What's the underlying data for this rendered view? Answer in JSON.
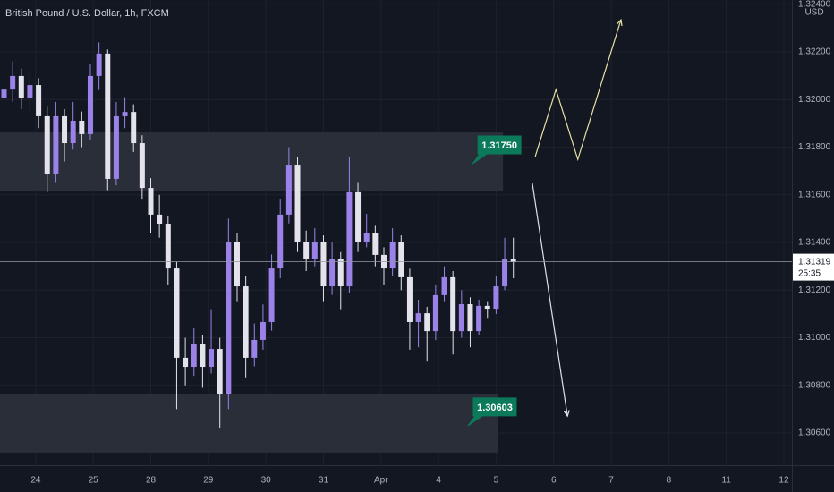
{
  "chart_data": {
    "type": "candlestick",
    "title": "British Pound / U.S. Dollar, 1h, FXCM",
    "currency": "USD",
    "up_color": "#9a82e8",
    "down_color": "#e4e3ec",
    "grid": true,
    "xlim": [
      -0.62,
      13.14
    ],
    "xticks": [
      {
        "value": 0,
        "label": "24"
      },
      {
        "value": 1,
        "label": "25"
      },
      {
        "value": 2,
        "label": "28"
      },
      {
        "value": 3,
        "label": "29"
      },
      {
        "value": 4,
        "label": "30"
      },
      {
        "value": 5,
        "label": "31"
      },
      {
        "value": 6,
        "label": "Apr"
      },
      {
        "value": 7,
        "label": "4"
      },
      {
        "value": 8,
        "label": "5"
      },
      {
        "value": 9,
        "label": "6"
      },
      {
        "value": 10,
        "label": "7"
      },
      {
        "value": 11,
        "label": "8"
      },
      {
        "value": 12,
        "label": "11"
      },
      {
        "value": 13,
        "label": "12"
      }
    ],
    "ylim": [
      1.30465,
      1.32418
    ],
    "yticks": [
      {
        "value": 1.306,
        "label": "1.30600"
      },
      {
        "value": 1.308,
        "label": "1.30800"
      },
      {
        "value": 1.31,
        "label": "1.31000"
      },
      {
        "value": 1.312,
        "label": "1.31200"
      },
      {
        "value": 1.314,
        "label": "1.31400"
      },
      {
        "value": 1.316,
        "label": "1.31600"
      },
      {
        "value": 1.318,
        "label": "1.31800"
      },
      {
        "value": 1.32,
        "label": "1.32000"
      },
      {
        "value": 1.322,
        "label": "1.32200"
      },
      {
        "value": 1.324,
        "label": "1.32400"
      }
    ],
    "x": [
      -0.55,
      -0.4,
      -0.25,
      -0.1,
      0.05,
      0.2,
      0.35,
      0.5,
      0.65,
      0.8,
      0.95,
      1.1,
      1.25,
      1.4,
      1.55,
      1.7,
      1.85,
      2,
      2.15,
      2.3,
      2.45,
      2.6,
      2.75,
      2.9,
      3.05,
      3.2,
      3.35,
      3.5,
      3.65,
      3.8,
      3.95,
      4.1,
      4.25,
      4.4,
      4.55,
      4.7,
      4.85,
      5,
      5.15,
      5.3,
      5.45,
      5.6,
      5.75,
      5.9,
      6.05,
      6.2,
      6.35,
      6.5,
      6.65,
      6.8,
      6.95,
      7.1,
      7.25,
      7.4,
      7.55,
      7.7,
      7.85,
      8,
      8.15,
      8.3
    ],
    "open": [
      1.32005,
      1.32042,
      1.32099,
      1.32005,
      1.32061,
      1.3193,
      1.31686,
      1.3193,
      1.31817,
      1.31911,
      1.31855,
      1.32099,
      1.32193,
      1.31667,
      1.3193,
      1.31948,
      1.31817,
      1.31629,
      1.31517,
      1.31479,
      1.31291,
      1.30916,
      1.30878,
      1.30972,
      1.30878,
      1.30953,
      1.30765,
      1.31404,
      1.31216,
      1.30916,
      1.30991,
      1.31066,
      1.31291,
      1.31517,
      1.31723,
      1.31404,
      1.31329,
      1.31404,
      1.31216,
      1.31329,
      1.31216,
      1.31611,
      1.31404,
      1.31441,
      1.31348,
      1.31291,
      1.31404,
      1.31254,
      1.31066,
      1.31103,
      1.31028,
      1.31179,
      1.31254,
      1.31028,
      1.31141,
      1.31028,
      1.31134,
      1.31122,
      1.31216,
      1.31329
    ],
    "high": [
      1.3214,
      1.3216,
      1.3213,
      1.3211,
      1.3209,
      1.3197,
      1.3199,
      1.3196,
      1.3199,
      1.3195,
      1.3215,
      1.3224,
      1.3221,
      1.3199,
      1.3201,
      1.3198,
      1.3185,
      1.3167,
      1.316,
      1.3151,
      1.3132,
      1.31,
      1.3104,
      1.3101,
      1.3112,
      1.31,
      1.315,
      1.3144,
      1.3126,
      1.3106,
      1.3114,
      1.3135,
      1.3158,
      1.318,
      1.3176,
      1.3145,
      1.3146,
      1.3143,
      1.314,
      1.3136,
      1.3176,
      1.3165,
      1.3152,
      1.3147,
      1.3138,
      1.3146,
      1.3143,
      1.3129,
      1.3116,
      1.3113,
      1.3122,
      1.313,
      1.3128,
      1.312,
      1.3117,
      1.3116,
      1.3115,
      1.3126,
      1.3142,
      1.3142
    ],
    "low": [
      1.3195,
      1.3199,
      1.3196,
      1.3194,
      1.3188,
      1.3161,
      1.3165,
      1.3174,
      1.3179,
      1.318,
      1.3183,
      1.3204,
      1.3162,
      1.3164,
      1.3188,
      1.3178,
      1.3158,
      1.3144,
      1.3142,
      1.3122,
      1.307,
      1.308,
      1.3084,
      1.3079,
      1.3085,
      1.3062,
      1.307,
      1.3115,
      1.3083,
      1.3088,
      1.3095,
      1.3103,
      1.3125,
      1.3148,
      1.3136,
      1.3128,
      1.313,
      1.3115,
      1.3118,
      1.3112,
      1.3119,
      1.3136,
      1.3138,
      1.313,
      1.3122,
      1.3126,
      1.312,
      1.3095,
      1.3096,
      1.309,
      1.3099,
      1.3115,
      1.3093,
      1.31,
      1.3096,
      1.3101,
      1.3108,
      1.311,
      1.312,
      1.3125
    ],
    "close": [
      1.32042,
      1.32099,
      1.32005,
      1.32061,
      1.3193,
      1.31686,
      1.3193,
      1.31817,
      1.31911,
      1.31855,
      1.32099,
      1.32193,
      1.31667,
      1.3193,
      1.31948,
      1.31817,
      1.31629,
      1.31517,
      1.31479,
      1.31291,
      1.30916,
      1.30878,
      1.30972,
      1.30878,
      1.30953,
      1.30765,
      1.31404,
      1.31216,
      1.30916,
      1.30991,
      1.31066,
      1.31291,
      1.31517,
      1.31723,
      1.31404,
      1.31329,
      1.31404,
      1.31216,
      1.31329,
      1.31216,
      1.31611,
      1.31404,
      1.31441,
      1.31348,
      1.31291,
      1.31404,
      1.31254,
      1.31066,
      1.31103,
      1.31028,
      1.31179,
      1.31254,
      1.31028,
      1.31141,
      1.31028,
      1.31134,
      1.31122,
      1.31216,
      1.31329,
      1.31319
    ],
    "last_price": {
      "value": 1.31319,
      "label": "1.31319",
      "countdown": "25:35"
    },
    "zones": [
      {
        "label": "1.31750",
        "xlim": [
          -0.62,
          8.12
        ],
        "ylim": [
          1.31618,
          1.31862
        ],
        "color": "#2a2e39"
      },
      {
        "label": "1.30603",
        "xlim": [
          -0.62,
          8.04
        ],
        "ylim": [
          1.30518,
          1.30762
        ],
        "color": "#2a2e39"
      }
    ],
    "paths": [
      {
        "color": "#e6e2a2",
        "points": [
          [
            8.68,
            1.31761
          ],
          [
            9.04,
            1.32042
          ],
          [
            9.42,
            1.31749
          ],
          [
            10.17,
            1.32335
          ]
        ]
      },
      {
        "color": "#e0e0e6",
        "points": [
          [
            8.63,
            1.31648
          ],
          [
            9.24,
            1.30671
          ]
        ]
      }
    ]
  }
}
